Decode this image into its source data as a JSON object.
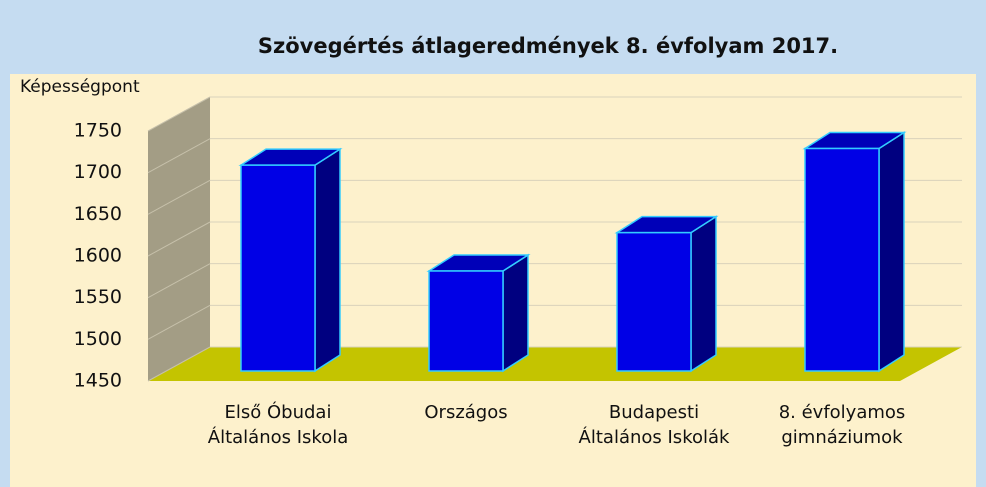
{
  "chart_data": {
    "type": "bar3d",
    "title": "Szövegértés átlageredmények 8. évfolyam 2017.",
    "y_label": "Képességpont",
    "categories": [
      "Első Óbudai Általános Iskola",
      "Országos",
      "Budapesti Általános Iskolák",
      "8. évfolyamos gimnáziumok"
    ],
    "values": [
      1697,
      1570,
      1616,
      1717
    ],
    "color": "#0000e6",
    "ylim": [
      1450,
      1750
    ],
    "yticks": [
      1450,
      1500,
      1550,
      1600,
      1650,
      1700,
      1750
    ],
    "grid": true
  }
}
